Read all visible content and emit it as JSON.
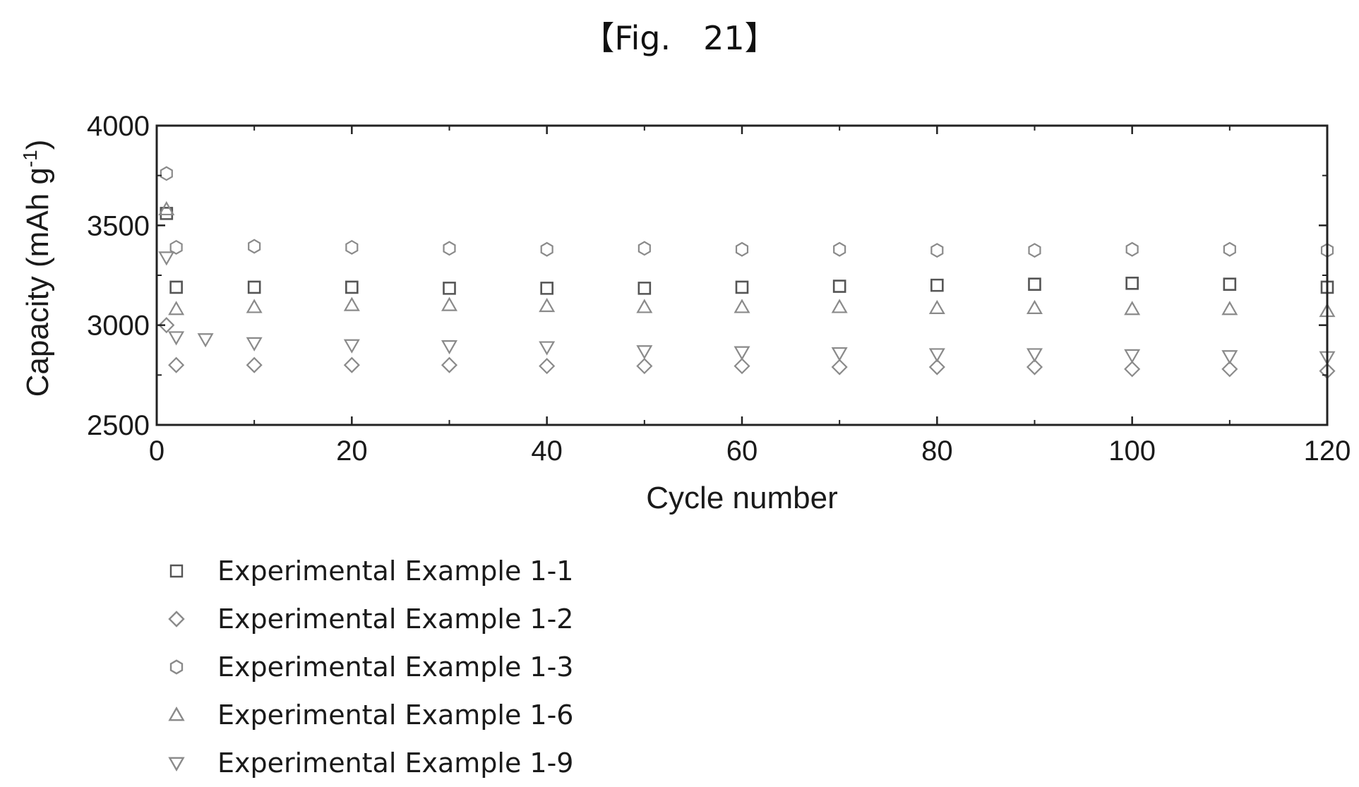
{
  "figure": {
    "label": "【Fig.　21】"
  },
  "chart_data": {
    "type": "scatter",
    "title": "",
    "xlabel": "Cycle number",
    "ylabel": "Capacity (mAh g",
    "ylabel_sup": "-1",
    "ylabel_close": ")",
    "xlim": [
      0,
      120
    ],
    "ylim": [
      2500,
      4000
    ],
    "xticks": [
      0,
      20,
      40,
      60,
      80,
      100,
      120
    ],
    "yticks": [
      2500,
      3000,
      3500,
      4000
    ],
    "grid": false,
    "legend_position": "below-left",
    "series": [
      {
        "name": "Experimental Example 1-1",
        "marker": "square",
        "color": "#555555",
        "points": [
          [
            1,
            3560
          ],
          [
            2,
            3190
          ],
          [
            10,
            3190
          ],
          [
            20,
            3190
          ],
          [
            30,
            3185
          ],
          [
            40,
            3185
          ],
          [
            50,
            3185
          ],
          [
            60,
            3190
          ],
          [
            70,
            3195
          ],
          [
            80,
            3200
          ],
          [
            90,
            3205
          ],
          [
            100,
            3210
          ],
          [
            110,
            3205
          ],
          [
            120,
            3190
          ]
        ]
      },
      {
        "name": "Experimental Example 1-2",
        "marker": "diamond",
        "color": "#8a8a8a",
        "points": [
          [
            1,
            3000
          ],
          [
            2,
            2800
          ],
          [
            10,
            2800
          ],
          [
            20,
            2800
          ],
          [
            30,
            2800
          ],
          [
            40,
            2795
          ],
          [
            50,
            2795
          ],
          [
            60,
            2795
          ],
          [
            70,
            2790
          ],
          [
            80,
            2790
          ],
          [
            90,
            2790
          ],
          [
            100,
            2780
          ],
          [
            110,
            2780
          ],
          [
            120,
            2770
          ]
        ]
      },
      {
        "name": "Experimental Example 1-3",
        "marker": "hexagon",
        "color": "#8a8a8a",
        "points": [
          [
            1,
            3760
          ],
          [
            2,
            3390
          ],
          [
            10,
            3395
          ],
          [
            20,
            3390
          ],
          [
            30,
            3385
          ],
          [
            40,
            3380
          ],
          [
            50,
            3385
          ],
          [
            60,
            3380
          ],
          [
            70,
            3380
          ],
          [
            80,
            3375
          ],
          [
            90,
            3375
          ],
          [
            100,
            3380
          ],
          [
            110,
            3380
          ],
          [
            120,
            3375
          ]
        ]
      },
      {
        "name": "Experimental Example 1-6",
        "marker": "triangle-up",
        "color": "#8a8a8a",
        "points": [
          [
            1,
            3580
          ],
          [
            2,
            3080
          ],
          [
            10,
            3090
          ],
          [
            20,
            3100
          ],
          [
            30,
            3100
          ],
          [
            40,
            3095
          ],
          [
            50,
            3090
          ],
          [
            60,
            3090
          ],
          [
            70,
            3090
          ],
          [
            80,
            3085
          ],
          [
            90,
            3085
          ],
          [
            100,
            3080
          ],
          [
            110,
            3080
          ],
          [
            120,
            3070
          ]
        ]
      },
      {
        "name": "Experimental Example 1-9",
        "marker": "triangle-down",
        "color": "#8a8a8a",
        "points": [
          [
            1,
            3340
          ],
          [
            2,
            2940
          ],
          [
            5,
            2930
          ],
          [
            10,
            2910
          ],
          [
            20,
            2900
          ],
          [
            30,
            2895
          ],
          [
            40,
            2890
          ],
          [
            50,
            2870
          ],
          [
            60,
            2865
          ],
          [
            70,
            2860
          ],
          [
            80,
            2855
          ],
          [
            90,
            2855
          ],
          [
            100,
            2850
          ],
          [
            110,
            2845
          ],
          [
            120,
            2840
          ]
        ]
      }
    ]
  }
}
